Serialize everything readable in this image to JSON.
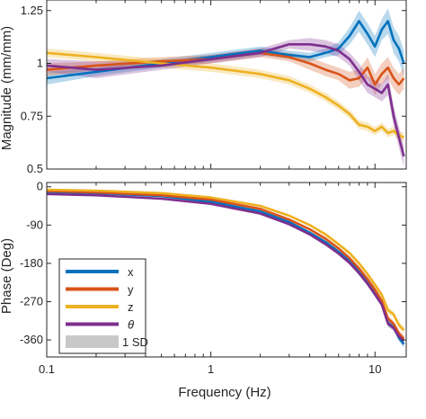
{
  "colors": {
    "x": "#0072BD",
    "y": "#D95319",
    "z": "#EDB120",
    "theta": "#7E2F8E",
    "band": "#C8C8C8",
    "axis": "#262626"
  },
  "chart_data": [
    {
      "type": "line",
      "panel": "magnitude",
      "ylabel": "Magnitude (mm/mm)",
      "xscale": "log",
      "xlim": [
        0.1,
        15.5
      ],
      "ylim": [
        0.5,
        1.3
      ],
      "yticks": [
        0.5,
        0.75,
        1,
        1.25
      ],
      "ytick_labels": [
        "0.5",
        "0.75",
        "1",
        "1.25"
      ],
      "grid": false,
      "series": [
        {
          "name": "x",
          "color": "#0072BD",
          "x": [
            0.1,
            0.2,
            0.5,
            1,
            2,
            3,
            4,
            5,
            6,
            7,
            8,
            9,
            10,
            11,
            12,
            13,
            14,
            15
          ],
          "y": [
            0.93,
            0.96,
            1.0,
            1.03,
            1.06,
            1.04,
            1.03,
            1.05,
            1.07,
            1.13,
            1.2,
            1.14,
            1.08,
            1.16,
            1.2,
            1.11,
            1.07,
            1.0
          ],
          "sd": [
            0.03,
            0.02,
            0.02,
            0.02,
            0.02,
            0.02,
            0.02,
            0.02,
            0.03,
            0.04,
            0.05,
            0.05,
            0.05,
            0.05,
            0.06,
            0.06,
            0.06,
            0.06
          ]
        },
        {
          "name": "y",
          "color": "#D95319",
          "x": [
            0.1,
            0.2,
            0.5,
            1,
            2,
            3,
            4,
            5,
            6,
            7,
            8,
            9,
            10,
            11,
            12,
            13,
            14,
            15
          ],
          "y": [
            0.97,
            0.99,
            1.01,
            1.02,
            1.05,
            1.03,
            1.0,
            0.97,
            0.95,
            0.92,
            0.93,
            0.98,
            0.9,
            0.95,
            0.98,
            0.93,
            0.9,
            0.93
          ],
          "sd": [
            0.03,
            0.02,
            0.02,
            0.02,
            0.02,
            0.02,
            0.03,
            0.03,
            0.03,
            0.04,
            0.04,
            0.05,
            0.05,
            0.05,
            0.05,
            0.05,
            0.05,
            0.05
          ]
        },
        {
          "name": "z",
          "color": "#EDB120",
          "x": [
            0.1,
            0.2,
            0.5,
            1,
            2,
            3,
            4,
            5,
            6,
            7,
            8,
            9,
            10,
            11,
            12,
            13,
            14,
            15
          ],
          "y": [
            1.05,
            1.03,
            1.0,
            0.98,
            0.95,
            0.92,
            0.88,
            0.84,
            0.8,
            0.76,
            0.71,
            0.7,
            0.68,
            0.7,
            0.67,
            0.68,
            0.66,
            0.65
          ],
          "sd": [
            0.02,
            0.02,
            0.02,
            0.02,
            0.02,
            0.02,
            0.02,
            0.02,
            0.02,
            0.02,
            0.02,
            0.02,
            0.02,
            0.02,
            0.02,
            0.02,
            0.02,
            0.02
          ]
        },
        {
          "name": "θ",
          "color": "#7E2F8E",
          "x": [
            0.1,
            0.2,
            0.5,
            1,
            2,
            3,
            4,
            5,
            6,
            7,
            8,
            9,
            10,
            11,
            12,
            13,
            14,
            15
          ],
          "y": [
            0.99,
            0.97,
            0.99,
            1.02,
            1.05,
            1.09,
            1.09,
            1.08,
            1.06,
            1.02,
            0.96,
            0.9,
            0.88,
            0.86,
            0.9,
            0.75,
            0.65,
            0.56
          ],
          "sd": [
            0.03,
            0.04,
            0.02,
            0.02,
            0.02,
            0.02,
            0.03,
            0.03,
            0.03,
            0.03,
            0.04,
            0.04,
            0.04,
            0.04,
            0.05,
            0.05,
            0.05,
            0.05
          ]
        }
      ]
    },
    {
      "type": "line",
      "panel": "phase",
      "xlabel": "Frequency (Hz)",
      "ylabel": "Phase (Deg)",
      "xscale": "log",
      "xlim": [
        0.1,
        15.5
      ],
      "xticks": [
        0.1,
        1,
        10
      ],
      "xtick_labels": [
        "0.1",
        "1",
        "10"
      ],
      "ylim": [
        -400,
        10
      ],
      "yticks": [
        0,
        -90,
        -180,
        -270,
        -360
      ],
      "ytick_labels": [
        "0",
        "-90",
        "-180",
        "-270",
        "-360"
      ],
      "grid": false,
      "legend": {
        "location": "bottom-left",
        "entries": [
          "x",
          "y",
          "z",
          "θ",
          "1 SD"
        ]
      },
      "series": [
        {
          "name": "x",
          "color": "#0072BD",
          "x": [
            0.1,
            0.2,
            0.5,
            1,
            2,
            3,
            4,
            5,
            6,
            7,
            8,
            9,
            10,
            11,
            12,
            13,
            14,
            15
          ],
          "y": [
            -12,
            -15,
            -22,
            -35,
            -58,
            -83,
            -108,
            -130,
            -153,
            -175,
            -200,
            -225,
            -250,
            -275,
            -320,
            -330,
            -355,
            -370
          ],
          "sd": [
            2,
            2,
            2,
            2,
            3,
            3,
            3,
            4,
            4,
            5,
            5,
            5,
            6,
            6,
            7,
            7,
            8,
            8
          ]
        },
        {
          "name": "y",
          "color": "#D95319",
          "x": [
            0.1,
            0.2,
            0.5,
            1,
            2,
            3,
            4,
            5,
            6,
            7,
            8,
            9,
            10,
            11,
            12,
            13,
            14,
            15
          ],
          "y": [
            -10,
            -13,
            -20,
            -30,
            -52,
            -77,
            -100,
            -122,
            -145,
            -168,
            -192,
            -217,
            -242,
            -268,
            -310,
            -322,
            -345,
            -357
          ],
          "sd": [
            2,
            2,
            2,
            2,
            3,
            3,
            3,
            4,
            4,
            5,
            5,
            5,
            6,
            6,
            7,
            7,
            8,
            8
          ]
        },
        {
          "name": "z",
          "color": "#EDB120",
          "x": [
            0.1,
            0.2,
            0.5,
            1,
            2,
            3,
            4,
            5,
            6,
            7,
            8,
            9,
            10,
            11,
            12,
            13,
            14,
            15
          ],
          "y": [
            -7,
            -9,
            -15,
            -25,
            -45,
            -68,
            -90,
            -112,
            -135,
            -156,
            -180,
            -205,
            -230,
            -254,
            -290,
            -300,
            -325,
            -337
          ],
          "sd": [
            2,
            2,
            2,
            2,
            3,
            3,
            3,
            4,
            4,
            5,
            5,
            5,
            6,
            6,
            7,
            7,
            8,
            8
          ]
        },
        {
          "name": "θ",
          "color": "#7E2F8E",
          "x": [
            0.1,
            0.2,
            0.5,
            1,
            2,
            3,
            4,
            5,
            6,
            7,
            8,
            9,
            10,
            11,
            12,
            13,
            14,
            15
          ],
          "y": [
            -17,
            -20,
            -28,
            -40,
            -63,
            -88,
            -112,
            -135,
            -157,
            -179,
            -203,
            -228,
            -253,
            -277,
            -322,
            -332,
            -352,
            -362
          ],
          "sd": [
            2,
            2,
            2,
            2,
            3,
            3,
            3,
            4,
            4,
            5,
            5,
            5,
            6,
            6,
            7,
            7,
            8,
            8
          ]
        }
      ]
    }
  ]
}
